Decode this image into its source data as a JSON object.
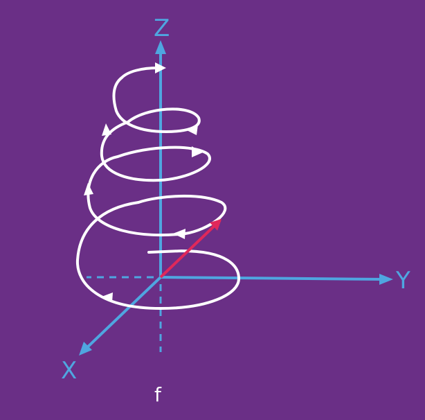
{
  "axes": {
    "z_label": "Z",
    "y_label": "Y",
    "x_label": "X"
  },
  "caption": "f",
  "colors": {
    "background": "#6a2f86",
    "axis": "#4fa6e0",
    "spiral": "#ffffff",
    "vector": "#e0285a"
  }
}
